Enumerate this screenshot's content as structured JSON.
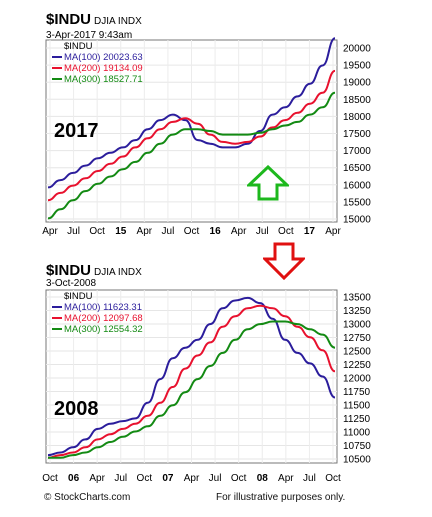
{
  "chart_data": [
    {
      "type": "line",
      "symbol": "$INDU",
      "exchange": "DJIA INDX",
      "date": "3-Apr-2017 9:43am",
      "legend_symbol": "$INDU",
      "year_label": "2017",
      "x_ticks": [
        "Apr",
        "Jul",
        "Oct",
        "15",
        "Apr",
        "Jul",
        "Oct",
        "16",
        "Apr",
        "Jul",
        "Oct",
        "17",
        "Apr"
      ],
      "y_ticks": [
        "20000",
        "19500",
        "19000",
        "18500",
        "18000",
        "17500",
        "17000",
        "16500",
        "16000",
        "15500",
        "15000"
      ],
      "ylim": [
        15000,
        20000
      ],
      "series": [
        {
          "name": "MA(100)",
          "last": "20023.63",
          "color": "#2b1d9c",
          "values": [
            15950,
            16150,
            16350,
            16550,
            16750,
            16900,
            17050,
            17250,
            17550,
            17800,
            17950,
            17800,
            17250,
            17150,
            17050,
            17050,
            17150,
            17500,
            17950,
            18150,
            18450,
            18800,
            19300,
            20050
          ]
        },
        {
          "name": "MA(200)",
          "last": "19134.09",
          "color": "#e8112e",
          "values": [
            15600,
            15800,
            16000,
            16200,
            16400,
            16600,
            16800,
            17050,
            17300,
            17550,
            17750,
            17850,
            17700,
            17400,
            17200,
            17150,
            17200,
            17350,
            17600,
            17800,
            18000,
            18250,
            18550,
            19150
          ]
        },
        {
          "name": "MA(300)",
          "last": "18527.71",
          "color": "#138a13",
          "values": [
            15100,
            15350,
            15600,
            15850,
            16050,
            16250,
            16450,
            16650,
            16900,
            17150,
            17400,
            17550,
            17550,
            17500,
            17400,
            17400,
            17400,
            17450,
            17550,
            17650,
            17750,
            17950,
            18150,
            18550
          ]
        }
      ]
    },
    {
      "type": "line",
      "symbol": "$INDU",
      "exchange": "DJIA INDX",
      "date": "3-Oct-2008",
      "legend_symbol": "$INDU",
      "year_label": "2008",
      "x_ticks": [
        "Oct",
        "06",
        "Apr",
        "Jul",
        "Oct",
        "07",
        "Apr",
        "Jul",
        "Oct",
        "08",
        "Apr",
        "Jul",
        "Oct"
      ],
      "y_ticks": [
        "13500",
        "13250",
        "13000",
        "12750",
        "12500",
        "12250",
        "12000",
        "11750",
        "11500",
        "11250",
        "11000",
        "10750",
        "10500"
      ],
      "ylim": [
        10350,
        13650
      ],
      "series": [
        {
          "name": "MA(100)",
          "last": "11623.31",
          "color": "#2b1d9c",
          "values": [
            10500,
            10550,
            10650,
            10800,
            11000,
            11100,
            11150,
            11200,
            11500,
            11950,
            12350,
            12550,
            12700,
            13000,
            13300,
            13450,
            13500,
            13400,
            13100,
            12700,
            12450,
            12250,
            12000,
            11600
          ]
        },
        {
          "name": "MA(200)",
          "last": "12097.68",
          "color": "#e8112e",
          "values": [
            10450,
            10500,
            10550,
            10650,
            10800,
            10900,
            11000,
            11100,
            11250,
            11500,
            11800,
            12150,
            12400,
            12650,
            12950,
            13150,
            13300,
            13350,
            13300,
            13150,
            12950,
            12750,
            12500,
            12100
          ]
        },
        {
          "name": "MA(300)",
          "last": "12554.32",
          "color": "#138a13",
          "values": [
            10450,
            10450,
            10500,
            10550,
            10650,
            10750,
            10850,
            10950,
            11050,
            11250,
            11450,
            11700,
            11950,
            12200,
            12450,
            12700,
            12900,
            13000,
            13050,
            13050,
            13000,
            12900,
            12800,
            12550
          ]
        }
      ]
    }
  ],
  "footer": {
    "brand": "© StockCharts.com",
    "note": "For illustrative purposes only."
  }
}
